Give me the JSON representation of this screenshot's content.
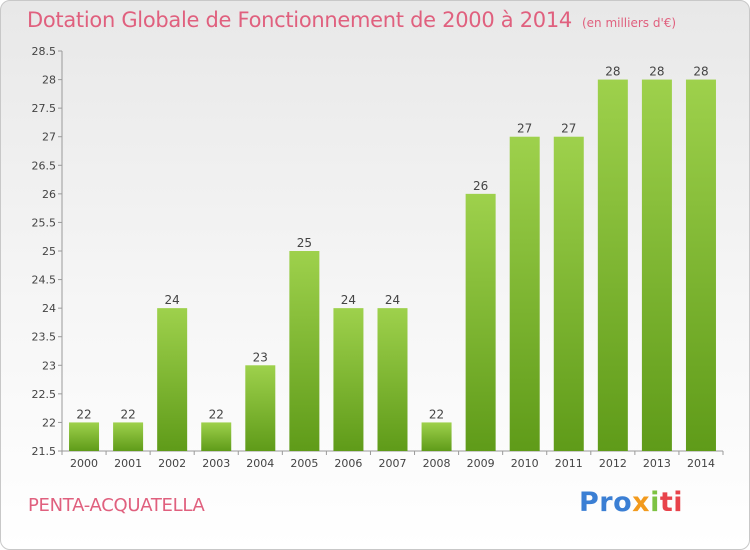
{
  "header": {
    "title": "Dotation Globale de Fonctionnement de 2000 à 2014",
    "unit": "(en milliers d'€)"
  },
  "footer": {
    "town": "PENTA-ACQUATELLA",
    "logo_text": [
      "Pro",
      "x",
      "i",
      "ti"
    ]
  },
  "colors": {
    "bar_light": "#9ed14c",
    "bar_dark": "#5f9b19",
    "text_pink": "#e0607e"
  },
  "chart_data": {
    "type": "bar",
    "title": "Dotation Globale de Fonctionnement de 2000 à 2014",
    "subtitle": "(en milliers d'€)",
    "categories": [
      "2000",
      "2001",
      "2002",
      "2003",
      "2004",
      "2005",
      "2006",
      "2007",
      "2008",
      "2009",
      "2010",
      "2011",
      "2012",
      "2013",
      "2014"
    ],
    "values": [
      22,
      22,
      24,
      22,
      23,
      25,
      24,
      24,
      22,
      26,
      27,
      27,
      28,
      28,
      28
    ],
    "data_labels": [
      "22",
      "22",
      "24",
      "22",
      "23",
      "25",
      "24",
      "24",
      "22",
      "26",
      "27",
      "27",
      "28",
      "28",
      "28"
    ],
    "ylim": [
      21.5,
      28.5
    ],
    "yticks": [
      21.5,
      22,
      22.5,
      23,
      23.5,
      24,
      24.5,
      25,
      25.5,
      26,
      26.5,
      27,
      27.5,
      28,
      28.5
    ],
    "ytick_labels": [
      "21.5",
      "22",
      "22.5",
      "23",
      "23.5",
      "24",
      "24.5",
      "25",
      "25.5",
      "26",
      "26.5",
      "27",
      "27.5",
      "28",
      "28.5"
    ],
    "grid": false,
    "legend": "none"
  }
}
